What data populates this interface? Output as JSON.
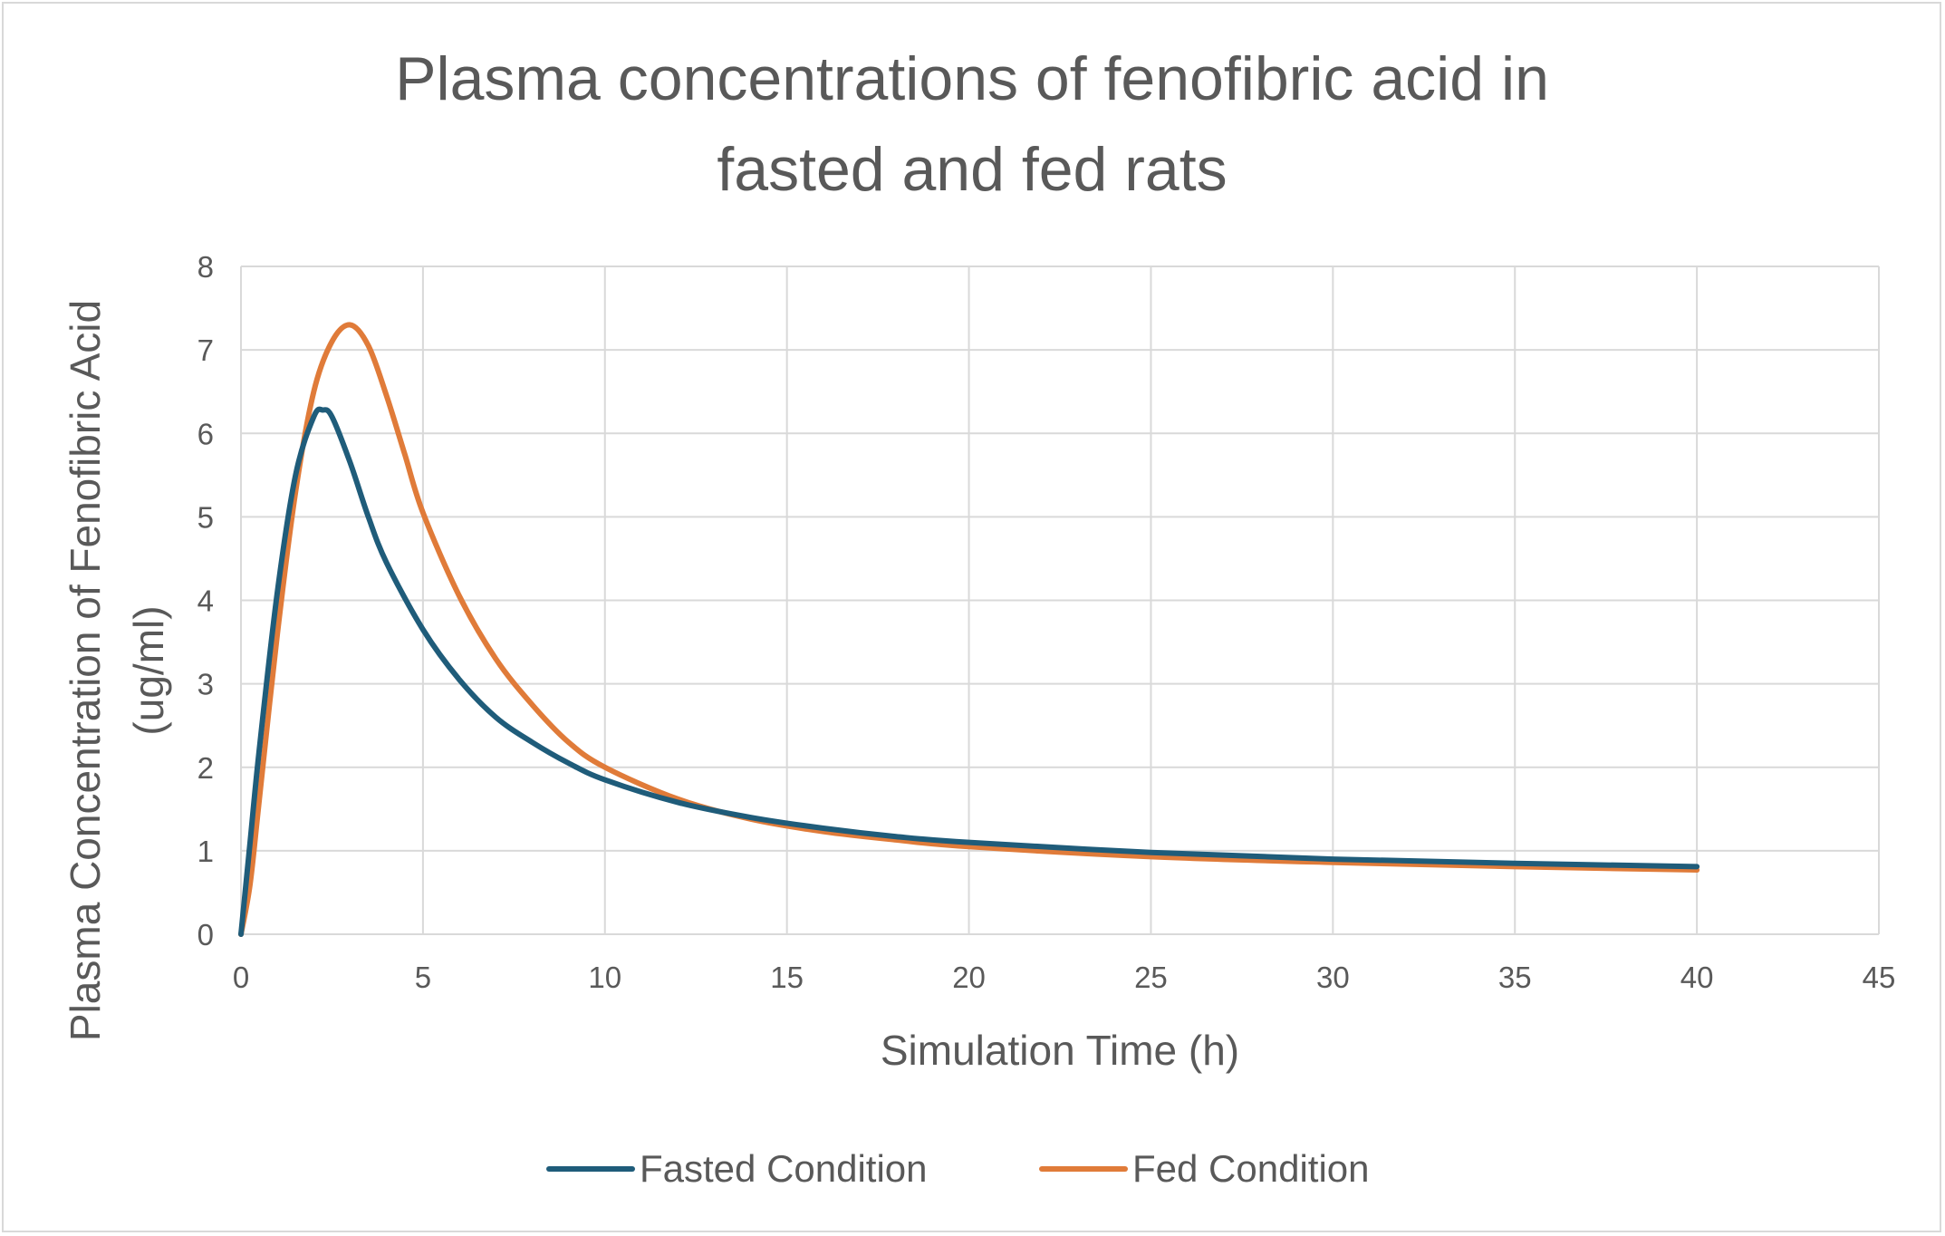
{
  "chart_data": {
    "type": "line",
    "title": [
      "Plasma concentrations of fenofibric acid in",
      "fasted and fed rats"
    ],
    "xlabel": "Simulation Time (h)",
    "ylabel": [
      "Plasma Concentration of Fenofibric Acid",
      "(ug/ml)"
    ],
    "xlim": [
      0,
      45
    ],
    "ylim": [
      0,
      8
    ],
    "xticks": [
      0,
      5,
      10,
      15,
      20,
      25,
      30,
      35,
      40,
      45
    ],
    "yticks": [
      0,
      1,
      2,
      3,
      4,
      5,
      6,
      7,
      8
    ],
    "grid": true,
    "legend_position": "bottom",
    "series": [
      {
        "name": "Fasted Condition",
        "color": "#1f5c7a",
        "x": [
          0,
          0.25,
          0.5,
          1,
          1.5,
          2,
          2.25,
          2.5,
          3,
          3.5,
          4,
          5,
          6,
          7,
          8,
          9,
          10,
          12,
          14,
          16,
          18,
          20,
          25,
          30,
          35,
          40
        ],
        "y": [
          0,
          1.1,
          2.2,
          4.1,
          5.5,
          6.2,
          6.28,
          6.2,
          5.65,
          5.0,
          4.45,
          3.65,
          3.05,
          2.6,
          2.3,
          2.05,
          1.85,
          1.58,
          1.4,
          1.27,
          1.17,
          1.1,
          0.98,
          0.9,
          0.85,
          0.81
        ]
      },
      {
        "name": "Fed Condition",
        "color": "#e07b39",
        "x": [
          0,
          0.25,
          0.5,
          1,
          1.5,
          2,
          2.5,
          3,
          3.5,
          4,
          4.5,
          5,
          6,
          7,
          8,
          9,
          10,
          12,
          14,
          16,
          18,
          20,
          25,
          30,
          35,
          40
        ],
        "y": [
          0,
          0.6,
          1.6,
          3.6,
          5.3,
          6.5,
          7.1,
          7.3,
          7.05,
          6.45,
          5.75,
          5.05,
          4.05,
          3.3,
          2.75,
          2.3,
          2.0,
          1.62,
          1.38,
          1.23,
          1.13,
          1.05,
          0.93,
          0.86,
          0.81,
          0.77
        ]
      }
    ]
  }
}
